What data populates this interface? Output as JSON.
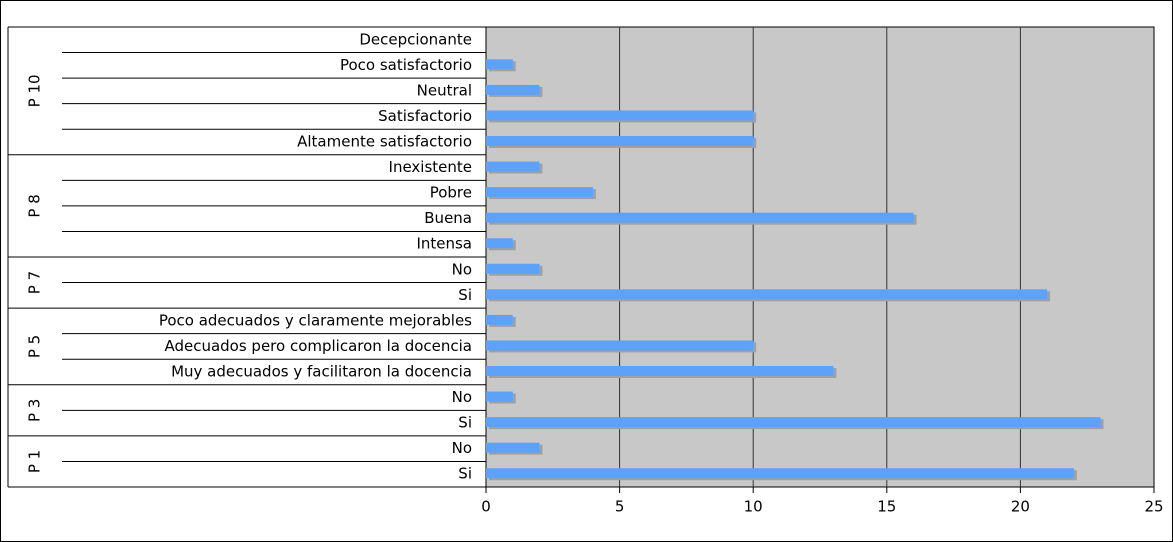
{
  "chart_data": {
    "type": "bar",
    "orientation": "horizontal",
    "color": "#5ea2f7",
    "shadow_color": "#a0a0a0",
    "plot_background": "#c8c8c8",
    "grid": true,
    "xlim": [
      0,
      25
    ],
    "xticks": [
      0,
      5,
      10,
      15,
      20,
      25
    ],
    "groups": [
      {
        "name": "P 10",
        "categories": [
          "Decepcionante",
          "Poco satisfactorio",
          "Neutral",
          "Satisfactorio",
          "Altamente satisfactorio"
        ],
        "values": [
          0,
          1,
          2,
          10,
          10
        ]
      },
      {
        "name": "P 8",
        "categories": [
          "Inexistente",
          "Pobre",
          "Buena",
          "Intensa"
        ],
        "values": [
          2,
          4,
          16,
          1
        ]
      },
      {
        "name": "P 7",
        "categories": [
          "No",
          "Si"
        ],
        "values": [
          2,
          21
        ]
      },
      {
        "name": "P 5",
        "categories": [
          "Poco adecuados y claramente mejorables",
          "Adecuados pero complicaron la docencia",
          "Muy adecuados y facilitaron la docencia"
        ],
        "values": [
          1,
          10,
          13
        ]
      },
      {
        "name": "P 3",
        "categories": [
          "No",
          "Si"
        ],
        "values": [
          1,
          23
        ]
      },
      {
        "name": "P 1",
        "categories": [
          "No",
          "Si"
        ],
        "values": [
          2,
          22
        ]
      }
    ]
  }
}
